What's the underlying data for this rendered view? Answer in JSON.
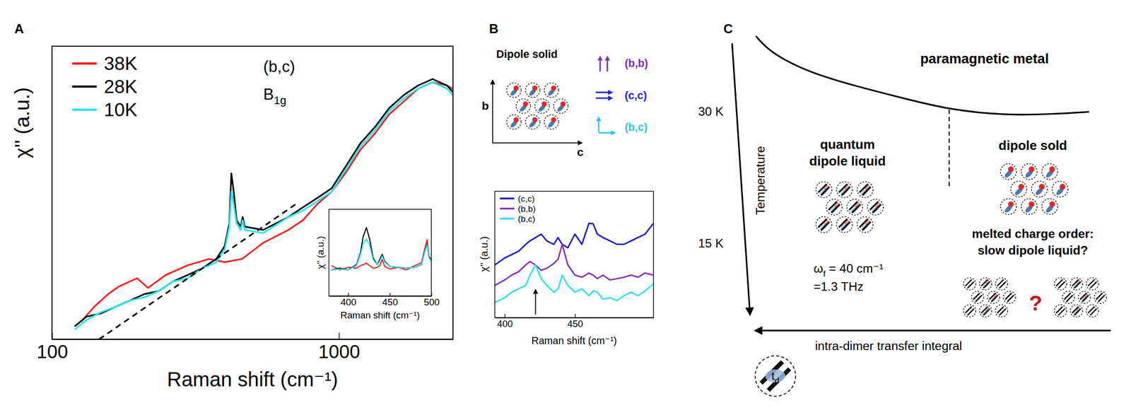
{
  "chart_data": [
    {
      "type": "line",
      "x_label": "Raman shift (cm⁻¹)",
      "y_label": "χ'' (a.u.)",
      "log": "x",
      "xlim": [
        100,
        2500
      ],
      "xticks": [
        100,
        1000
      ],
      "ylim": [
        0,
        10
      ],
      "tick_labels": "x",
      "legend": "upper left",
      "annotations": [
        {
          "text": "(b,c)"
        },
        {
          "symbol": "B",
          "subscript": "1g"
        }
      ],
      "series": [
        {
          "name": "38K",
          "color": "#ff1a1a",
          "x": [
            120,
            128,
            140,
            157,
            171,
            198,
            216,
            249,
            297,
            353,
            400,
            460,
            545,
            667,
            749,
            841,
            944,
            1060,
            1190,
            1336,
            1499,
            1683,
            1890,
            2122,
            2382,
            2495
          ],
          "values": [
            0.44,
            0.66,
            1.1,
            1.54,
            1.8,
            2.08,
            1.75,
            2.19,
            2.52,
            2.74,
            2.63,
            2.74,
            3.29,
            3.73,
            4.06,
            4.61,
            5.04,
            5.7,
            6.47,
            7.02,
            7.68,
            8.11,
            8.55,
            8.77,
            8.66,
            8.55
          ]
        },
        {
          "name": "28K",
          "color": "#000000",
          "x": [
            120,
            132,
            148,
            166,
            187,
            210,
            235,
            264,
            297,
            333,
            374,
            400,
            415,
            422,
            430,
            440,
            455,
            462,
            470,
            545,
            667,
            749,
            841,
            944,
            1060,
            1190,
            1336,
            1499,
            1683,
            1890,
            2122,
            2382,
            2495
          ],
          "values": [
            0.44,
            0.77,
            0.88,
            1.1,
            1.32,
            1.54,
            1.64,
            1.97,
            2.19,
            2.41,
            2.74,
            3.18,
            3.95,
            5.66,
            5.04,
            4.06,
            3.84,
            4.17,
            3.84,
            3.73,
            4.17,
            4.5,
            4.82,
            5.15,
            5.92,
            6.69,
            7.24,
            7.89,
            8.33,
            8.66,
            8.88,
            8.66,
            8.44
          ]
        },
        {
          "name": "10K",
          "color": "#22e5f5",
          "x": [
            120,
            132,
            148,
            166,
            187,
            210,
            235,
            264,
            297,
            333,
            374,
            400,
            415,
            422,
            430,
            440,
            455,
            462,
            470,
            545,
            667,
            749,
            841,
            944,
            1060,
            1190,
            1336,
            1499,
            1683,
            1890,
            2122,
            2382,
            2495
          ],
          "values": [
            0.33,
            0.66,
            0.92,
            1.1,
            1.32,
            1.43,
            1.64,
            1.97,
            2.08,
            2.41,
            2.63,
            3.07,
            3.84,
            5.04,
            4.61,
            3.95,
            3.73,
            4.06,
            3.73,
            3.62,
            4.17,
            4.39,
            4.71,
            5.04,
            5.81,
            6.58,
            7.13,
            7.79,
            8.22,
            8.55,
            8.77,
            8.55,
            8.33
          ]
        },
        {
          "color": "#000000",
          "line_style": "dashed",
          "x": [
            146,
            706
          ],
          "values": [
            0,
            4.6
          ]
        }
      ]
    },
    {
      "type": "line",
      "x_label": "Raman shift (cm⁻¹)",
      "y_label": "χ'' (a.u.)",
      "xlim": [
        377,
        500
      ],
      "xticks": [
        400,
        450,
        500
      ],
      "ylim": [
        0,
        10
      ],
      "tick_labels": "x",
      "x": [
        380,
        390,
        400,
        410,
        415,
        418,
        422,
        426,
        430,
        435,
        438,
        441,
        444,
        450,
        460,
        470,
        480,
        488,
        493,
        495,
        497,
        500
      ],
      "series": [
        {
          "color": "#ff1a1a",
          "values": [
            3.5,
            3.0,
            3.3,
            3.2,
            3.5,
            3.6,
            3.8,
            3.5,
            3.2,
            3.3,
            3.5,
            4.2,
            3.4,
            3.1,
            3.3,
            3.0,
            3.5,
            3.8,
            5.8,
            6.5,
            4.6,
            4.2
          ]
        },
        {
          "color": "#000000",
          "values": [
            3.0,
            3.2,
            3.0,
            3.6,
            5.0,
            6.8,
            7.9,
            6.5,
            4.4,
            3.6,
            4.2,
            4.8,
            4.0,
            3.4,
            3.3,
            3.2,
            3.3,
            3.6,
            5.5,
            6.0,
            4.5,
            4.0
          ]
        },
        {
          "color": "#22e5f5",
          "values": [
            3.0,
            3.1,
            3.0,
            3.5,
            4.8,
            6.0,
            6.6,
            5.8,
            4.2,
            3.6,
            4.0,
            4.6,
            3.9,
            3.4,
            3.3,
            3.2,
            3.3,
            3.6,
            5.4,
            5.9,
            4.4,
            4.0
          ]
        }
      ]
    },
    {
      "type": "line",
      "x_label": "Raman shift (cm⁻¹)",
      "y_label": "χ'' (a.u.)",
      "xlim": [
        393,
        506
      ],
      "xticks": [
        400,
        450
      ],
      "ylim": [
        0,
        13
      ],
      "tick_labels": "x",
      "legend": "upper left",
      "annotations": [
        {
          "type": "arrow",
          "x": 422
        }
      ],
      "x": [
        393,
        400,
        405,
        410,
        415,
        418,
        422,
        426,
        430,
        435,
        438,
        441,
        445,
        450,
        455,
        460,
        463,
        466,
        470,
        475,
        480,
        485,
        490,
        495,
        500,
        506
      ],
      "series": [
        {
          "name": "(c,c)",
          "color": "#1a1ad6",
          "values": [
            5.42,
            6.13,
            6.48,
            6.83,
            7.54,
            7.89,
            8.24,
            8.59,
            7.89,
            7.54,
            8.24,
            7.54,
            7.18,
            8.59,
            7.54,
            9.7,
            9.65,
            8.59,
            8.24,
            7.89,
            7.54,
            7.54,
            7.89,
            8.24,
            8.59,
            9.7
          ]
        },
        {
          "name": "(b,b)",
          "color": "#8a2fc0",
          "values": [
            3.31,
            3.87,
            4.37,
            4.72,
            5.42,
            5.77,
            5.42,
            4.86,
            5.07,
            5.56,
            5.99,
            7.54,
            5.42,
            4.37,
            4.15,
            4.58,
            4.37,
            4.01,
            4.37,
            3.87,
            4.01,
            4.15,
            4.37,
            4.15,
            4.58,
            4.37
          ]
        },
        {
          "name": "(b,c)",
          "color": "#2fe0f0",
          "values": [
            1.55,
            2.04,
            2.61,
            2.96,
            3.31,
            4.37,
            5.42,
            4.01,
            3.31,
            2.61,
            2.96,
            4.37,
            3.31,
            2.61,
            2.96,
            2.25,
            2.75,
            2.61,
            1.9,
            2.04,
            1.76,
            2.25,
            2.61,
            2.25,
            2.75,
            3.45
          ]
        }
      ]
    }
  ],
  "panel_labels": [
    "A",
    "B",
    "C"
  ],
  "dipole_solid_panel": {
    "title": "Dipole solid",
    "axes": {
      "vertical": "b",
      "horizontal": "c"
    },
    "polarizations": [
      {
        "label": "(b,b)",
        "color": "#7a2fb0"
      },
      {
        "label": "(c,c)",
        "color": "#2323e0"
      },
      {
        "label": "(b,c)",
        "color": "#30c4ea"
      }
    ]
  },
  "phase_diagram": {
    "y_axis_title": "Temperature",
    "temperature_labels": [
      "30 K",
      "15 K"
    ],
    "x_axis_title": "intra-dimer transfer integral",
    "dimer_label": {
      "symbol": "t",
      "subscript": "d"
    },
    "regions": {
      "metal": "paramagnetic metal",
      "quantum_liquid": "quantum dipole liquid",
      "solid": "dipole sold",
      "melted": "melted charge order: slow dipole liquid?",
      "question": "?"
    },
    "fluctuation": {
      "symbol": "ω",
      "subscript": "f",
      "text": " = 40 cm⁻¹",
      "frequency": "=1.3 THz"
    }
  }
}
